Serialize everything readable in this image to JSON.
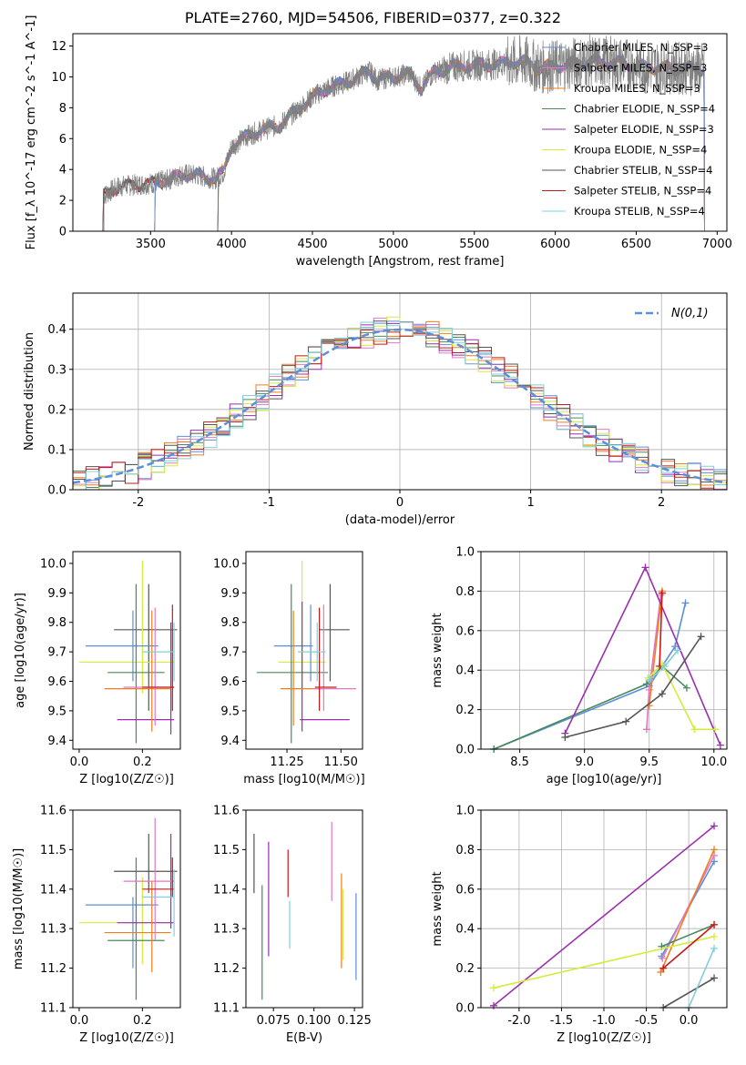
{
  "figure_title": "PLATE=2760, MJD=54506, FIBERID=0377, z=0.322",
  "colors": {
    "Chabrier MILES": "#5b8fd9",
    "Salpeter MILES": "#e377c2",
    "Kroupa MILES": "#ef7d22",
    "Chabrier ELODIE": "#4a8a5a",
    "Salpeter ELODIE": "#9a2fae",
    "Kroupa ELODIE": "#d4ec3c",
    "Chabrier STELIB": "#555555",
    "Salpeter STELIB": "#c81818",
    "Kroupa STELIB": "#7fd0d9",
    "data": "#7f7f7f",
    "gaussian": "#5b8fd9"
  },
  "chart_data": [
    {
      "id": "spectrum",
      "type": "line",
      "xlabel": "wavelength [Angstrom, rest frame]",
      "ylabel": "Flux [f_λ 10^-17 erg cm^-2 s^-1 A^-1]",
      "xlim": [
        3020,
        7060
      ],
      "ylim": [
        0,
        12.8
      ],
      "xticks": [
        3500,
        4000,
        4500,
        5000,
        5500,
        6000,
        6500,
        7000
      ],
      "yticks": [
        0,
        2,
        4,
        6,
        8,
        10,
        12
      ],
      "grid": false,
      "legend_position": "right",
      "data_start": 3210,
      "data_end": 6920,
      "model_starts": {
        "MILES": 3530,
        "ELODIE": 3920,
        "STELIB": 3210
      },
      "continuum": [
        [
          3210,
          2.3
        ],
        [
          3300,
          2.9
        ],
        [
          3400,
          3.0
        ],
        [
          3500,
          3.1
        ],
        [
          3600,
          3.3
        ],
        [
          3700,
          3.7
        ],
        [
          3800,
          3.6
        ],
        [
          3900,
          3.4
        ],
        [
          3950,
          3.8
        ],
        [
          4000,
          5.5
        ],
        [
          4100,
          6.2
        ],
        [
          4200,
          6.6
        ],
        [
          4300,
          6.9
        ],
        [
          4400,
          7.8
        ],
        [
          4500,
          8.7
        ],
        [
          4600,
          9.3
        ],
        [
          4700,
          9.6
        ],
        [
          4800,
          10.1
        ],
        [
          4850,
          10.4
        ],
        [
          4900,
          9.8
        ],
        [
          5000,
          10.0
        ],
        [
          5100,
          10.2
        ],
        [
          5170,
          9.3
        ],
        [
          5250,
          10.3
        ],
        [
          5400,
          10.7
        ],
        [
          5600,
          10.8
        ],
        [
          5800,
          11.0
        ],
        [
          5900,
          10.6
        ],
        [
          6000,
          10.7
        ],
        [
          6200,
          11.0
        ],
        [
          6400,
          10.9
        ],
        [
          6563,
          10.6
        ],
        [
          6700,
          10.6
        ],
        [
          6920,
          10.5
        ]
      ],
      "series": [
        {
          "name": "Chabrier MILES, N_SSP=3"
        },
        {
          "name": "Salpeter MILES, N_SSP=3"
        },
        {
          "name": "Kroupa MILES, N_SSP=3"
        },
        {
          "name": "Chabrier ELODIE, N_SSP=4"
        },
        {
          "name": "Salpeter ELODIE, N_SSP=3"
        },
        {
          "name": "Kroupa ELODIE, N_SSP=4"
        },
        {
          "name": "Chabrier STELIB, N_SSP=4"
        },
        {
          "name": "Salpeter STELIB, N_SSP=4"
        },
        {
          "name": "Kroupa STELIB, N_SSP=4"
        }
      ]
    },
    {
      "id": "residuals",
      "type": "histogram",
      "xlabel": "(data-model)/error",
      "ylabel": "Normed distribution",
      "xlim": [
        -2.5,
        2.5
      ],
      "ylim": [
        0,
        0.49
      ],
      "xticks": [
        -2,
        -1,
        0,
        1,
        2
      ],
      "yticks": [
        0.0,
        0.1,
        0.2,
        0.3,
        0.4
      ],
      "grid": true,
      "bin_width": 0.1,
      "legend": "N(0,1)",
      "legend_position": "top-right"
    },
    {
      "id": "age-vs-Z",
      "type": "errorbar",
      "xlabel": "Z [log10(Z/Z☉)]",
      "ylabel": "age [log10(age/yr)]",
      "xlim": [
        -0.02,
        0.32
      ],
      "ylim": [
        9.37,
        10.04
      ],
      "xticks": [
        0.0,
        0.2
      ],
      "yticks": [
        9.4,
        9.5,
        9.6,
        9.7,
        9.8,
        9.9,
        10.0
      ],
      "points": [
        {
          "model": "Chabrier STELIB",
          "x": 0.22,
          "xerr": [
            0.11,
            0.31
          ],
          "y": 9.775,
          "yerr": [
            9.5,
            9.93
          ]
        },
        {
          "model": "Kroupa ELODIE",
          "x": 0.2,
          "xerr": [
            0.0,
            0.3
          ],
          "y": 9.665,
          "yerr": [
            9.56,
            10.01
          ]
        },
        {
          "model": "Chabrier MILES",
          "x": 0.17,
          "xerr": [
            0.02,
            0.25
          ],
          "y": 9.72,
          "yerr": [
            9.6,
            9.84
          ]
        },
        {
          "model": "Chabrier ELODIE",
          "x": 0.18,
          "xerr": [
            0.09,
            0.27
          ],
          "y": 9.63,
          "yerr": [
            9.39,
            9.93
          ]
        },
        {
          "model": "Salpeter ELODIE",
          "x": 0.29,
          "xerr": [
            0.12,
            0.3
          ],
          "y": 9.47,
          "yerr": [
            9.42,
            9.8
          ]
        },
        {
          "model": "Kroupa MILES",
          "x": 0.23,
          "xerr": [
            0.08,
            0.29
          ],
          "y": 9.575,
          "yerr": [
            9.43,
            9.84
          ]
        },
        {
          "model": "Salpeter MILES",
          "x": 0.24,
          "xerr": [
            0.14,
            0.3
          ],
          "y": 9.58,
          "yerr": [
            9.45,
            9.85
          ]
        },
        {
          "model": "Salpeter STELIB",
          "x": 0.295,
          "xerr": [
            0.2,
            0.3
          ],
          "y": 9.58,
          "yerr": [
            9.5,
            9.86
          ]
        },
        {
          "model": "Kroupa STELIB",
          "x": 0.3,
          "xerr": [
            0.2,
            0.3
          ],
          "y": 9.7,
          "yerr": [
            9.6,
            9.8
          ]
        }
      ]
    },
    {
      "id": "age-vs-mass",
      "type": "errorbar",
      "xlabel": "mass [log10(M/M☉)]",
      "ylabel": "",
      "xlim": [
        11.06,
        11.6
      ],
      "ylim": [
        9.37,
        10.04
      ],
      "xticks": [
        11.25,
        11.5
      ],
      "yticks": [
        9.4,
        9.5,
        9.6,
        9.7,
        9.8,
        9.9,
        10.0
      ],
      "points": [
        {
          "model": "Chabrier STELIB",
          "x": 11.45,
          "xerr": [
            11.4,
            11.54
          ],
          "y": 9.775,
          "yerr": [
            9.6,
            9.93
          ]
        },
        {
          "model": "Kroupa ELODIE",
          "x": 11.32,
          "xerr": [
            11.21,
            11.43
          ],
          "y": 9.665,
          "yerr": [
            9.56,
            10.01
          ]
        },
        {
          "model": "Chabrier MILES",
          "x": 11.36,
          "xerr": [
            11.19,
            11.37
          ],
          "y": 9.72,
          "yerr": [
            9.6,
            9.86
          ]
        },
        {
          "model": "Chabrier ELODIE",
          "x": 11.27,
          "xerr": [
            11.11,
            11.44
          ],
          "y": 9.63,
          "yerr": [
            9.39,
            9.93
          ]
        },
        {
          "model": "Salpeter ELODIE",
          "x": 11.32,
          "xerr": [
            11.31,
            11.54
          ],
          "y": 9.47,
          "yerr": [
            9.43,
            9.87
          ]
        },
        {
          "model": "Kroupa MILES",
          "x": 11.28,
          "xerr": [
            11.22,
            11.42
          ],
          "y": 9.575,
          "yerr": [
            9.45,
            9.84
          ]
        },
        {
          "model": "Salpeter MILES",
          "x": 11.42,
          "xerr": [
            11.37,
            11.57
          ],
          "y": 9.575,
          "yerr": [
            9.5,
            9.86
          ]
        },
        {
          "model": "Salpeter STELIB",
          "x": 11.4,
          "xerr": [
            11.38,
            11.48
          ],
          "y": 9.58,
          "yerr": [
            9.5,
            9.85
          ]
        },
        {
          "model": "Kroupa STELIB",
          "x": 11.39,
          "xerr": [
            11.3,
            11.43
          ],
          "y": 9.7,
          "yerr": [
            9.6,
            9.8
          ]
        }
      ]
    },
    {
      "id": "weight-vs-age",
      "type": "line",
      "xlabel": "age [log10(age/yr)]",
      "ylabel": "mass weight",
      "xlim": [
        8.2,
        10.1
      ],
      "ylim": [
        0,
        1.0
      ],
      "xticks": [
        8.5,
        9.0,
        9.5,
        10.0
      ],
      "yticks": [
        0.0,
        0.2,
        0.4,
        0.6,
        0.8,
        1.0
      ],
      "grid": true,
      "series": [
        {
          "model": "Chabrier MILES",
          "points": [
            [
              8.3,
              0.0
            ],
            [
              9.5,
              0.32
            ],
            [
              9.7,
              0.52
            ],
            [
              9.78,
              0.74
            ]
          ]
        },
        {
          "model": "Salpeter MILES",
          "points": [
            [
              9.48,
              0.1
            ],
            [
              9.5,
              0.3
            ],
            [
              9.59,
              0.78
            ]
          ]
        },
        {
          "model": "Kroupa MILES",
          "points": [
            [
              9.5,
              0.22
            ],
            [
              9.6,
              0.8
            ]
          ]
        },
        {
          "model": "Chabrier ELODIE",
          "points": [
            [
              8.3,
              0.0
            ],
            [
              9.48,
              0.33
            ],
            [
              9.6,
              0.42
            ],
            [
              9.79,
              0.31
            ]
          ]
        },
        {
          "model": "Salpeter ELODIE",
          "points": [
            [
              8.85,
              0.08
            ],
            [
              9.47,
              0.92
            ],
            [
              10.05,
              0.02
            ]
          ]
        },
        {
          "model": "Kroupa ELODIE",
          "points": [
            [
              9.49,
              0.36
            ],
            [
              9.6,
              0.43
            ],
            [
              9.85,
              0.1
            ],
            [
              10.01,
              0.1
            ]
          ]
        },
        {
          "model": "Chabrier STELIB",
          "points": [
            [
              8.85,
              0.06
            ],
            [
              9.32,
              0.14
            ],
            [
              9.6,
              0.28
            ],
            [
              9.9,
              0.57
            ]
          ]
        },
        {
          "model": "Salpeter STELIB",
          "points": [
            [
              9.58,
              0.42
            ],
            [
              9.6,
              0.79
            ]
          ]
        },
        {
          "model": "Kroupa STELIB",
          "points": [
            [
              9.5,
              0.35
            ],
            [
              9.62,
              0.42
            ],
            [
              9.72,
              0.5
            ]
          ]
        }
      ]
    },
    {
      "id": "mass-vs-Z",
      "type": "errorbar",
      "xlabel": "Z [log10(Z/Z☉)]",
      "ylabel": "mass [log10(M/M☉)]",
      "xlim": [
        -0.02,
        0.32
      ],
      "ylim": [
        11.1,
        11.6
      ],
      "xticks": [
        0.0,
        0.2
      ],
      "yticks": [
        11.1,
        11.2,
        11.3,
        11.4,
        11.5,
        11.6
      ],
      "points": [
        {
          "model": "Chabrier STELIB",
          "x": 0.22,
          "xerr": [
            0.11,
            0.31
          ],
          "y": 11.445,
          "yerr": [
            11.39,
            11.54
          ]
        },
        {
          "model": "Kroupa ELODIE",
          "x": 0.2,
          "xerr": [
            0.0,
            0.3
          ],
          "y": 11.315,
          "yerr": [
            11.21,
            11.43
          ]
        },
        {
          "model": "Chabrier MILES",
          "x": 0.17,
          "xerr": [
            0.02,
            0.25
          ],
          "y": 11.36,
          "yerr": [
            11.2,
            11.38
          ]
        },
        {
          "model": "Chabrier ELODIE",
          "x": 0.18,
          "xerr": [
            0.09,
            0.27
          ],
          "y": 11.27,
          "yerr": [
            11.12,
            11.48
          ]
        },
        {
          "model": "Salpeter ELODIE",
          "x": 0.29,
          "xerr": [
            0.12,
            0.3
          ],
          "y": 11.315,
          "yerr": [
            11.3,
            11.54
          ]
        },
        {
          "model": "Kroupa MILES",
          "x": 0.23,
          "xerr": [
            0.08,
            0.29
          ],
          "y": 11.29,
          "yerr": [
            11.19,
            11.42
          ]
        },
        {
          "model": "Salpeter MILES",
          "x": 0.24,
          "xerr": [
            0.14,
            0.3
          ],
          "y": 11.42,
          "yerr": [
            11.27,
            11.58
          ]
        },
        {
          "model": "Salpeter STELIB",
          "x": 0.295,
          "xerr": [
            0.2,
            0.3
          ],
          "y": 11.4,
          "yerr": [
            11.38,
            11.48
          ]
        },
        {
          "model": "Kroupa STELIB",
          "x": 0.3,
          "xerr": [
            0.2,
            0.3
          ],
          "y": 11.38,
          "yerr": [
            11.28,
            11.45
          ]
        }
      ]
    },
    {
      "id": "mass-vs-ebv",
      "type": "errorbar",
      "xlabel": "E(B-V)",
      "ylabel": "",
      "xlim": [
        0.058,
        0.13
      ],
      "ylim": [
        11.1,
        11.6
      ],
      "xticks": [
        0.075,
        0.1,
        0.125
      ],
      "yticks": [
        11.1,
        11.2,
        11.3,
        11.4,
        11.5,
        11.6
      ],
      "points": [
        {
          "model": "Chabrier STELIB",
          "x": 0.063,
          "yerr": [
            11.39,
            11.54
          ]
        },
        {
          "model": "Chabrier ELODIE",
          "x": 0.068,
          "yerr": [
            11.12,
            11.41
          ]
        },
        {
          "model": "Salpeter ELODIE",
          "x": 0.072,
          "yerr": [
            11.23,
            11.52
          ]
        },
        {
          "model": "Salpeter STELIB",
          "x": 0.084,
          "yerr": [
            11.38,
            11.5
          ]
        },
        {
          "model": "Kroupa STELIB",
          "x": 0.085,
          "yerr": [
            11.25,
            11.37
          ]
        },
        {
          "model": "Salpeter MILES",
          "x": 0.111,
          "yerr": [
            11.37,
            11.57
          ]
        },
        {
          "model": "Kroupa MILES",
          "x": 0.117,
          "yerr": [
            11.2,
            11.44
          ]
        },
        {
          "model": "Kroupa ELODIE",
          "x": 0.118,
          "yerr": [
            11.22,
            11.4
          ]
        },
        {
          "model": "Chabrier MILES",
          "x": 0.126,
          "yerr": [
            11.17,
            11.39
          ]
        }
      ]
    },
    {
      "id": "weight-vs-Z",
      "type": "line",
      "xlabel": "Z [log10(Z/Z☉)]",
      "ylabel": "mass weight",
      "xlim": [
        -2.45,
        0.45
      ],
      "ylim": [
        0,
        1.0
      ],
      "xticks": [
        -2.0,
        -1.5,
        -1.0,
        -0.5,
        0.0
      ],
      "yticks": [
        0.0,
        0.2,
        0.4,
        0.6,
        0.8,
        1.0
      ],
      "grid": true,
      "series": [
        {
          "model": "Chabrier MILES",
          "points": [
            [
              -0.32,
              0.26
            ],
            [
              0.3,
              0.74
            ]
          ]
        },
        {
          "model": "Salpeter MILES",
          "points": [
            [
              -0.31,
              0.25
            ],
            [
              0.3,
              0.77
            ]
          ]
        },
        {
          "model": "Kroupa MILES",
          "points": [
            [
              -0.33,
              0.18
            ],
            [
              0.3,
              0.8
            ]
          ]
        },
        {
          "model": "Chabrier ELODIE",
          "points": [
            [
              -0.32,
              0.31
            ],
            [
              0.3,
              0.42
            ]
          ]
        },
        {
          "model": "Salpeter ELODIE",
          "points": [
            [
              -2.3,
              0.01
            ],
            [
              0.3,
              0.92
            ]
          ]
        },
        {
          "model": "Kroupa ELODIE",
          "points": [
            [
              -2.3,
              0.1
            ],
            [
              0.3,
              0.36
            ]
          ]
        },
        {
          "model": "Chabrier STELIB",
          "points": [
            [
              -0.3,
              0.0
            ],
            [
              0.3,
              0.15
            ]
          ]
        },
        {
          "model": "Salpeter STELIB",
          "points": [
            [
              -0.3,
              0.2
            ],
            [
              0.3,
              0.42
            ]
          ]
        },
        {
          "model": "Kroupa STELIB",
          "points": [
            [
              0.0,
              0.0
            ],
            [
              0.3,
              0.3
            ]
          ]
        }
      ]
    }
  ]
}
